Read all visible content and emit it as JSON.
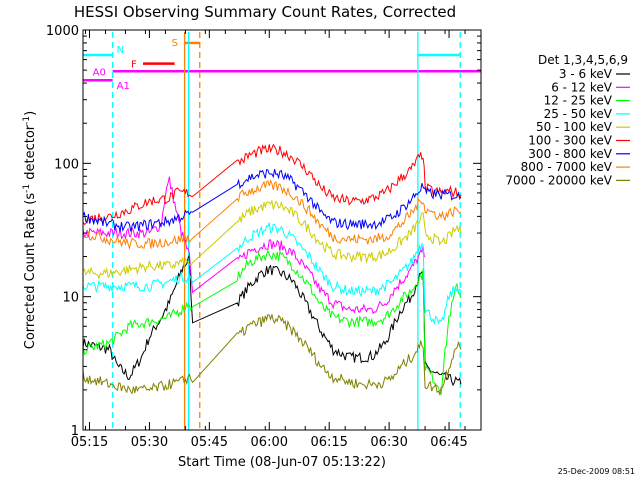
{
  "chart_data": {
    "type": "line",
    "title": "HESSI Observing Summary Count Rates, Corrected",
    "xlabel": "Start Time (08-Jun-07 05:13:22)",
    "ylabel_main": "Corrected Count Rate (s",
    "ylabel_sup1": "-1",
    "ylabel_mid": " detector",
    "ylabel_sup2": "-1",
    "ylabel_end": ")",
    "yscale": "log",
    "ylim": [
      1,
      1000
    ],
    "xlim_minutes": [
      313.37,
      413
    ],
    "x_ticks": [
      {
        "label": "05:15",
        "minute": 315
      },
      {
        "label": "05:30",
        "minute": 330
      },
      {
        "label": "05:45",
        "minute": 345
      },
      {
        "label": "06:00",
        "minute": 360
      },
      {
        "label": "06:15",
        "minute": 375
      },
      {
        "label": "06:30",
        "minute": 390
      },
      {
        "label": "06:45",
        "minute": 405
      }
    ],
    "y_ticks": [
      {
        "label": "1",
        "value": 1
      },
      {
        "label": "10",
        "value": 10
      },
      {
        "label": "100",
        "value": 100
      },
      {
        "label": "1000",
        "value": 1000
      }
    ],
    "legend_title": "Det 1,3,4,5,6,9",
    "legend_position": "right",
    "timestamp": "25-Dec-2009 08:51",
    "series": [
      {
        "name": "3 - 6 keV",
        "color": "#000000",
        "x": [
          313.4,
          320,
          322,
          325,
          328,
          330,
          333,
          335,
          337,
          338.5,
          340,
          340.8,
          352,
          355,
          358,
          360,
          363,
          366,
          370,
          373,
          376,
          380,
          383,
          386,
          389,
          391,
          393,
          395.5,
          397,
          398.5,
          399,
          403,
          407,
          408
        ],
        "y": [
          4.5,
          4,
          3,
          2.5,
          3.5,
          5,
          7,
          9,
          13,
          17,
          19,
          6,
          9,
          12,
          15,
          16,
          15,
          13,
          8,
          5.5,
          4,
          3.5,
          3.5,
          3.6,
          4.5,
          6,
          8,
          10,
          13,
          15,
          3,
          2.5,
          2.3,
          2.2
        ]
      },
      {
        "name": "6 - 12 keV",
        "color": "#ff00ff",
        "x": [
          313.4,
          320,
          325,
          330,
          333,
          334,
          335,
          336,
          337,
          338,
          339,
          340,
          340.8,
          352,
          355,
          358,
          360,
          363,
          366,
          370,
          373,
          376,
          380,
          383,
          386,
          389,
          391,
          393,
          395.5,
          397,
          398.5,
          399
        ],
        "y": [
          30,
          30,
          30,
          30,
          35,
          60,
          75,
          55,
          40,
          30,
          25,
          20,
          10,
          18,
          22,
          24,
          25,
          24,
          21,
          15,
          11,
          9,
          8,
          8,
          8,
          9,
          11,
          13,
          16,
          19,
          22,
          20
        ]
      },
      {
        "name": "12 - 25 keV",
        "color": "#00ff00",
        "x": [
          313.4,
          320,
          325,
          330,
          335,
          338,
          340,
          340.8,
          352,
          355,
          358,
          360,
          363,
          366,
          370,
          373,
          376,
          380,
          383,
          386,
          389,
          391,
          393,
          395.5,
          397,
          398.5,
          399,
          403,
          405,
          407,
          408
        ],
        "y": [
          4,
          4.5,
          6,
          6.5,
          7,
          8,
          9,
          8,
          14,
          18,
          20,
          21,
          20,
          17,
          12,
          8.5,
          7,
          6.5,
          6.5,
          6.5,
          7,
          8,
          9.5,
          11,
          13,
          15,
          3,
          2,
          7,
          12,
          10
        ]
      },
      {
        "name": "25 - 50 keV",
        "color": "#00ffff",
        "x": [
          313.4,
          320,
          325,
          330,
          335,
          338,
          340,
          340.8,
          352,
          355,
          358,
          360,
          363,
          366,
          370,
          373,
          376,
          380,
          383,
          386,
          389,
          391,
          393,
          395.5,
          397,
          398.5,
          399,
          403,
          405,
          407,
          408
        ],
        "y": [
          12,
          12,
          12,
          12,
          13,
          14,
          14,
          13,
          23,
          28,
          31,
          33,
          32,
          27,
          20,
          15,
          12,
          11,
          11,
          11,
          12,
          13,
          15,
          18,
          22,
          26,
          8,
          6,
          10,
          12,
          11
        ]
      },
      {
        "name": "50 - 100 keV",
        "color": "#cccc00",
        "x": [
          313.4,
          320,
          325,
          330,
          335,
          338,
          340,
          340.8,
          352,
          355,
          358,
          360,
          363,
          366,
          370,
          373,
          376,
          380,
          383,
          386,
          389,
          391,
          393,
          395.5,
          397,
          398.5,
          399,
          403,
          405,
          407,
          408
        ],
        "y": [
          15,
          15,
          16,
          17,
          17,
          18,
          18,
          17,
          36,
          43,
          47,
          49,
          48,
          42,
          32,
          25,
          21,
          20,
          20,
          20,
          21,
          23,
          26,
          30,
          35,
          40,
          30,
          25,
          28,
          33,
          30
        ]
      },
      {
        "name": "100 - 300 keV",
        "color": "#ff0000",
        "x": [
          313.4,
          320,
          325,
          330,
          335,
          337,
          339,
          340,
          340.8,
          352,
          355,
          358,
          360,
          363,
          366,
          370,
          373,
          376,
          380,
          383,
          386,
          389,
          391,
          393,
          395.5,
          397,
          398.5,
          399,
          403,
          405,
          407,
          408
        ],
        "y": [
          38,
          40,
          45,
          52,
          55,
          60,
          60,
          60,
          58,
          100,
          115,
          124,
          127,
          124,
          110,
          85,
          65,
          55,
          52,
          52,
          55,
          60,
          68,
          78,
          90,
          105,
          118,
          65,
          60,
          62,
          60,
          58
        ]
      },
      {
        "name": "300 - 800 keV",
        "color": "#0000ff",
        "x": [
          313.4,
          320,
          325,
          330,
          335,
          338,
          340,
          340.8,
          352,
          355,
          358,
          360,
          363,
          366,
          370,
          373,
          376,
          380,
          383,
          386,
          389,
          391,
          393,
          395.5,
          397,
          398.5,
          399,
          403,
          405,
          407,
          408
        ],
        "y": [
          40,
          35,
          33,
          35,
          37,
          40,
          42,
          40,
          70,
          78,
          83,
          85,
          82,
          72,
          55,
          42,
          36,
          35,
          35,
          35,
          37,
          40,
          45,
          53,
          60,
          68,
          60,
          58,
          58,
          57,
          55
        ]
      },
      {
        "name": "800 - 7000 keV",
        "color": "#ff8000",
        "x": [
          313.4,
          320,
          325,
          330,
          335,
          338,
          340,
          340.8,
          352,
          355,
          358,
          360,
          363,
          366,
          370,
          373,
          376,
          380,
          383,
          386,
          389,
          391,
          393,
          395.5,
          397,
          398.5,
          399,
          403,
          405,
          407,
          408
        ],
        "y": [
          30,
          27,
          25,
          25,
          26,
          27,
          28,
          27,
          55,
          62,
          66,
          68,
          66,
          58,
          44,
          34,
          28,
          27,
          27,
          27,
          28,
          31,
          35,
          42,
          48,
          55,
          45,
          40,
          42,
          45,
          43
        ]
      },
      {
        "name": "7000 - 20000 keV",
        "color": "#808000",
        "x": [
          313.4,
          320,
          325,
          330,
          335,
          338,
          340,
          340.8,
          352,
          355,
          358,
          360,
          363,
          366,
          370,
          373,
          376,
          380,
          383,
          386,
          389,
          391,
          393,
          395.5,
          397,
          398.5,
          399,
          403,
          405,
          407,
          408
        ],
        "y": [
          2.5,
          2.2,
          2,
          2,
          2.2,
          2.3,
          2.5,
          2.3,
          5,
          6,
          6.5,
          7,
          6.5,
          5.5,
          4,
          3,
          2.5,
          2.3,
          2.2,
          2.2,
          2.3,
          2.5,
          3,
          3.5,
          4,
          4.5,
          2.2,
          2,
          3,
          4.5,
          4
        ]
      }
    ],
    "annotations": [
      {
        "label": "N",
        "color": "#00ffff"
      },
      {
        "label": "F",
        "color": "#ff0000"
      },
      {
        "label": "S",
        "color": "#ff8000"
      },
      {
        "label": "A0",
        "color": "#ff00ff"
      },
      {
        "label": "A1",
        "color": "#ff00ff"
      }
    ],
    "intervals": {
      "night": [
        {
          "start": 313.37,
          "end": 320.8
        },
        {
          "start": 339.8,
          "end": 339.8
        },
        {
          "start": 397.2,
          "end": 407.8
        }
      ],
      "flare": [
        {
          "start": 328.4,
          "end": 336.3
        }
      ],
      "saa": [
        {
          "start": 338.8,
          "end": 342.6
        }
      ],
      "attenuator_a0": [
        {
          "start": 320.8,
          "end": 413
        }
      ],
      "attenuator_a1": [
        {
          "start": 313.37,
          "end": 320.8
        }
      ]
    },
    "vlines": [
      {
        "minute": 320.8,
        "color": "#00ffff",
        "style": "dashed"
      },
      {
        "minute": 339.8,
        "color": "#00ffff",
        "style": "solid"
      },
      {
        "minute": 338.8,
        "color": "#ff8000",
        "style": "solid"
      },
      {
        "minute": 342.6,
        "color": "#ff8000",
        "style": "dashed"
      },
      {
        "minute": 397.2,
        "color": "#00ffff",
        "style": "solid"
      },
      {
        "minute": 407.8,
        "color": "#00ffff",
        "style": "dashed"
      }
    ],
    "grid": false
  }
}
